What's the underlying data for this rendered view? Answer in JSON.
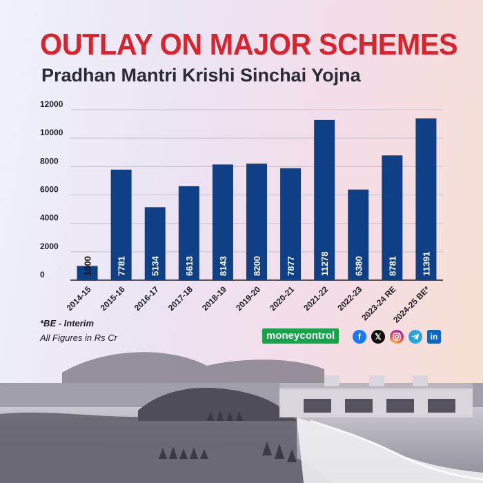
{
  "title": "OUTLAY ON MAJOR SCHEMES",
  "subtitle": "Pradhan Mantri Krishi Sinchai Yojna",
  "footnote": "*BE - Interim",
  "units_note": "All Figures in Rs Cr",
  "brand": {
    "name": "moneycontrol",
    "color": "#16a34a"
  },
  "social_icons": [
    "facebook-icon",
    "x-icon",
    "instagram-icon",
    "telegram-icon",
    "linkedin-icon"
  ],
  "colors": {
    "title": "#d9232d",
    "bar": "#0f3f84",
    "bar_label": "#ffffff",
    "small_bar_label": "#111111"
  },
  "chart_data": {
    "type": "bar",
    "title": "",
    "xlabel": "",
    "ylabel": "",
    "categories": [
      "2014-15",
      "2015-16",
      "2016-17",
      "2017-18",
      "2018-19",
      "2019-20",
      "2020-21",
      "2021-22",
      "2022-23",
      "2023-24 RE",
      "2024-25 BE*"
    ],
    "values": [
      1000,
      7781,
      5134,
      6613,
      8143,
      8200,
      7877,
      11278,
      6380,
      8781,
      11391
    ],
    "value_labels": [
      "1000",
      "7781",
      "5134",
      "6613",
      "8143",
      "8200",
      "7877",
      "11278",
      "6380",
      "8781",
      "11391"
    ],
    "ylim": [
      0,
      12000
    ],
    "yticks": [
      0,
      2000,
      4000,
      6000,
      8000,
      10000,
      12000
    ],
    "ytick_labels": [
      "0",
      "2000",
      "4000",
      "6000",
      "8000",
      "10000",
      "12000"
    ],
    "grid": true,
    "legend": "none"
  }
}
